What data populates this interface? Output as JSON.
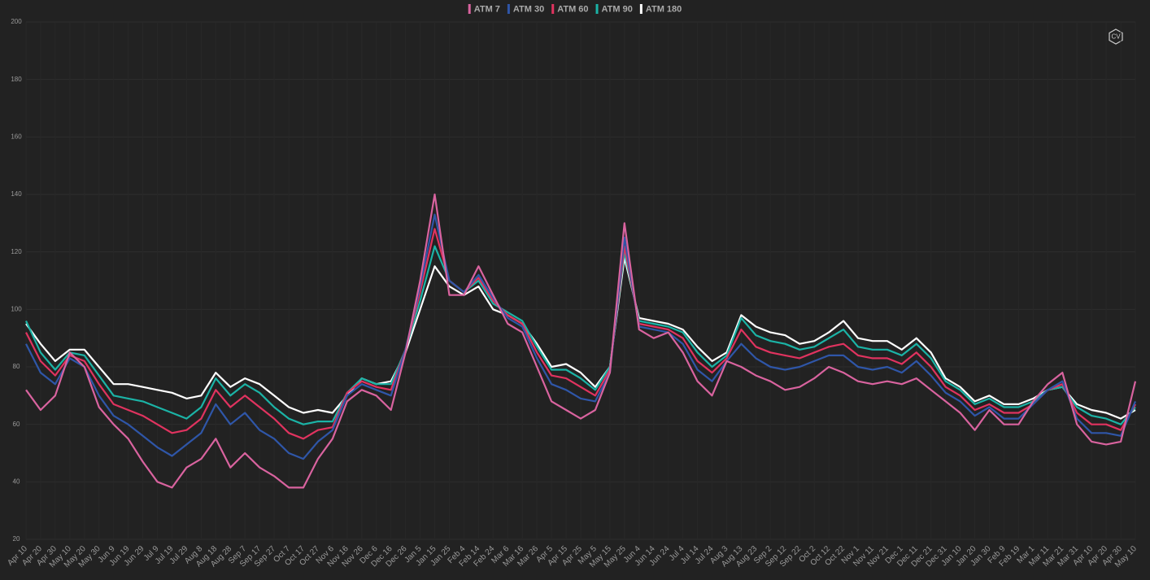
{
  "chart_data": {
    "type": "line",
    "logo": "CV",
    "categories": [
      "Apr 10",
      "Apr 20",
      "Apr 30",
      "May 10",
      "May 20",
      "May 30",
      "Jun 9",
      "Jun 19",
      "Jun 29",
      "Jul 9",
      "Jul 19",
      "Jul 29",
      "Aug 8",
      "Aug 18",
      "Aug 28",
      "Sep 7",
      "Sep 17",
      "Sep 27",
      "Oct 7",
      "Oct 17",
      "Oct 27",
      "Nov 6",
      "Nov 16",
      "Nov 26",
      "Dec 6",
      "Dec 16",
      "Dec 26",
      "Jan 5",
      "Jan 15",
      "Jan 25",
      "Feb 4",
      "Feb 14",
      "Feb 24",
      "Mar 6",
      "Mar 16",
      "Mar 26",
      "Apr 5",
      "Apr 15",
      "Apr 25",
      "May 5",
      "May 15",
      "May 25",
      "Jun 4",
      "Jun 14",
      "Jun 24",
      "Jul 4",
      "Jul 14",
      "Jul 24",
      "Aug 3",
      "Aug 13",
      "Aug 23",
      "Sep 2",
      "Sep 12",
      "Sep 22",
      "Oct 2",
      "Oct 12",
      "Oct 22",
      "Nov 1",
      "Nov 11",
      "Nov 21",
      "Dec 1",
      "Dec 11",
      "Dec 21",
      "Dec 31",
      "Jan 10",
      "Jan 20",
      "Jan 30",
      "Feb 9",
      "Feb 19",
      "Mar 1",
      "Mar 11",
      "Mar 21",
      "Mar 31",
      "Apr 10",
      "Apr 20",
      "Apr 30",
      "May 10"
    ],
    "series": [
      {
        "name": "ATM 7",
        "color": "#d9639f",
        "values": [
          72,
          65,
          70,
          85,
          80,
          66,
          60,
          55,
          47,
          40,
          38,
          45,
          48,
          55,
          45,
          50,
          45,
          42,
          38,
          38,
          48,
          55,
          68,
          72,
          70,
          65,
          85,
          110,
          140,
          105,
          105,
          115,
          105,
          95,
          92,
          80,
          68,
          65,
          62,
          65,
          78,
          130,
          93,
          90,
          92,
          85,
          75,
          70,
          82,
          80,
          77,
          75,
          72,
          73,
          76,
          80,
          78,
          75,
          74,
          75,
          74,
          76,
          72,
          68,
          64,
          58,
          65,
          60,
          60,
          68,
          74,
          78,
          60,
          54,
          53,
          54,
          75
        ]
      },
      {
        "name": "ATM 30",
        "color": "#2f56a8",
        "values": [
          88,
          78,
          74,
          83,
          80,
          70,
          63,
          60,
          56,
          52,
          49,
          53,
          57,
          67,
          60,
          64,
          58,
          55,
          50,
          48,
          54,
          58,
          70,
          74,
          72,
          70,
          86,
          108,
          133,
          110,
          106,
          112,
          104,
          97,
          94,
          83,
          74,
          72,
          69,
          68,
          78,
          125,
          94,
          93,
          92,
          88,
          79,
          75,
          82,
          88,
          83,
          80,
          79,
          80,
          82,
          84,
          84,
          80,
          79,
          80,
          78,
          82,
          77,
          71,
          68,
          63,
          66,
          62,
          62,
          67,
          72,
          75,
          62,
          57,
          57,
          56,
          68
        ]
      },
      {
        "name": "ATM 60",
        "color": "#e0335f",
        "values": [
          92,
          82,
          77,
          84,
          82,
          74,
          67,
          65,
          63,
          60,
          57,
          58,
          62,
          72,
          66,
          70,
          66,
          62,
          57,
          55,
          58,
          59,
          71,
          75,
          73,
          72,
          86,
          106,
          128,
          110,
          106,
          111,
          103,
          98,
          95,
          85,
          77,
          76,
          73,
          70,
          79,
          122,
          95,
          94,
          93,
          90,
          82,
          78,
          83,
          93,
          87,
          85,
          84,
          83,
          85,
          87,
          88,
          84,
          83,
          83,
          81,
          85,
          80,
          73,
          70,
          65,
          67,
          64,
          64,
          67,
          72,
          74,
          64,
          60,
          60,
          58,
          67
        ]
      },
      {
        "name": "ATM 90",
        "color": "#1bb3a6",
        "values": [
          96,
          85,
          79,
          85,
          84,
          77,
          70,
          69,
          68,
          66,
          64,
          62,
          66,
          76,
          70,
          74,
          71,
          66,
          62,
          60,
          61,
          61,
          71,
          76,
          74,
          74,
          86,
          103,
          122,
          110,
          106,
          110,
          102,
          99,
          96,
          87,
          79,
          79,
          76,
          72,
          80,
          120,
          96,
          95,
          94,
          92,
          85,
          80,
          84,
          97,
          91,
          89,
          88,
          86,
          87,
          90,
          93,
          87,
          86,
          86,
          84,
          88,
          83,
          75,
          72,
          67,
          69,
          66,
          66,
          68,
          72,
          73,
          66,
          63,
          62,
          60,
          66
        ]
      },
      {
        "name": "ATM 180",
        "color": "#ffffff",
        "values": [
          95,
          88,
          82,
          86,
          86,
          80,
          74,
          74,
          73,
          72,
          71,
          69,
          70,
          78,
          73,
          76,
          74,
          70,
          66,
          64,
          65,
          64,
          70,
          76,
          74,
          75,
          85,
          100,
          115,
          108,
          105,
          108,
          100,
          98,
          95,
          88,
          80,
          81,
          78,
          73,
          80,
          118,
          97,
          96,
          95,
          93,
          87,
          82,
          85,
          98,
          94,
          92,
          91,
          88,
          89,
          92,
          96,
          90,
          89,
          89,
          86,
          90,
          85,
          76,
          73,
          68,
          70,
          67,
          67,
          69,
          72,
          73,
          67,
          65,
          64,
          62,
          65
        ]
      }
    ],
    "ylim": [
      20,
      200
    ],
    "yticks": [
      20,
      40,
      60,
      80,
      100,
      120,
      140,
      160,
      180,
      200
    ],
    "grid": true
  }
}
